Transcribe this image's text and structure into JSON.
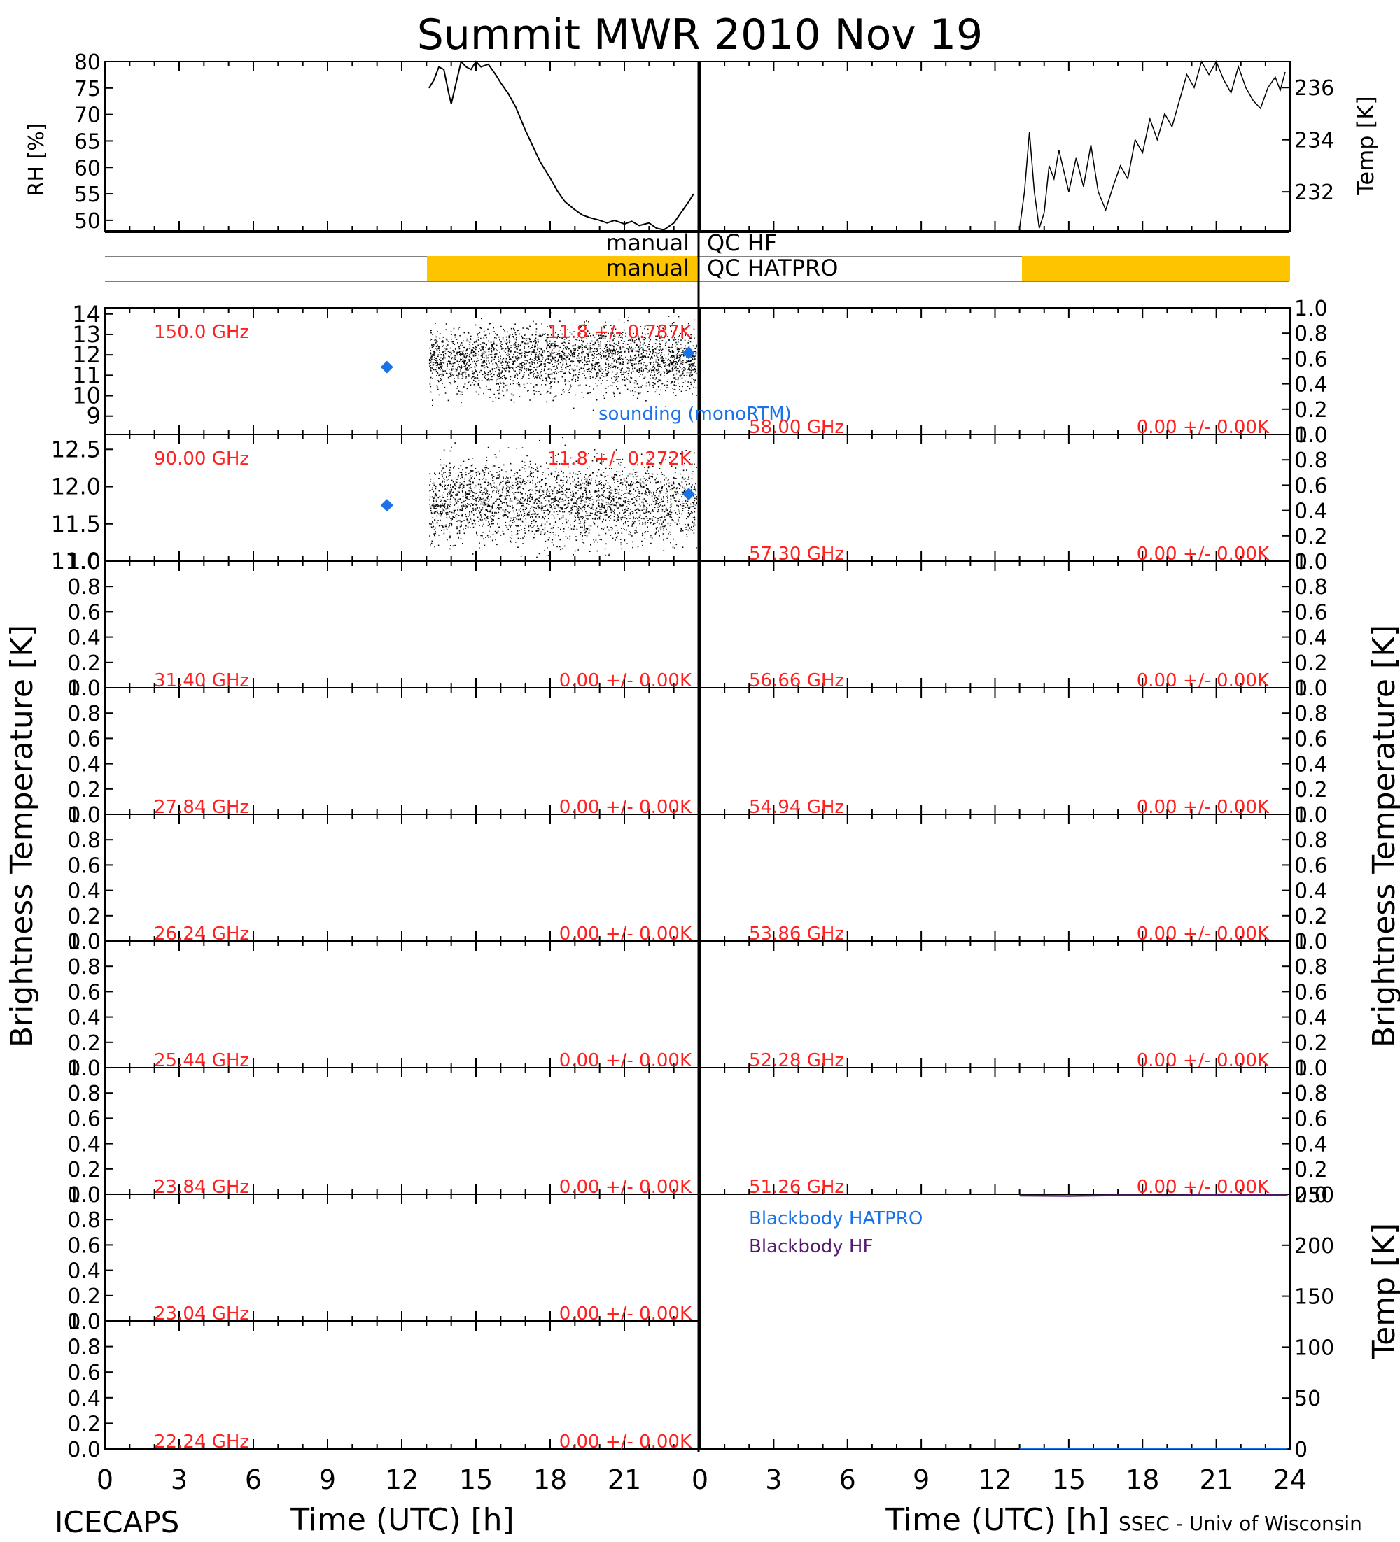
{
  "title": "Summit MWR 2010 Nov 19",
  "footer": {
    "left": "ICECAPS",
    "right": "SSEC - Univ of Wisconsin"
  },
  "x_axis": {
    "label": "Time (UTC) [h]",
    "ticks": [
      "0",
      "3",
      "6",
      "9",
      "12",
      "15",
      "18",
      "21",
      "24"
    ],
    "range": [
      0,
      24
    ]
  },
  "y_labels": {
    "left": "Brightness Temperature [K]",
    "right": "Brightness Temperature [K]",
    "rh": "RH [%]",
    "temp": "Temp [K]",
    "blackbody_temp": "Temp [K]"
  },
  "qc": {
    "hf_left": "manual",
    "hf_right": "QC HF",
    "hatpro_left": "manual",
    "hatpro_right": "QC HATPRO",
    "color": "#ffc400"
  },
  "legend": {
    "sounding": "sounding (monoRTM)",
    "bb_hatpro": "Blackbody HATPRO",
    "bb_hf": "Blackbody HF"
  },
  "colors": {
    "label_red": "#ff2020",
    "sounding_blue": "#1a72e8",
    "bb_purple": "#551a6e",
    "trace": "#000000"
  },
  "chart_data": [
    {
      "type": "line",
      "title": "RH [%]",
      "ylim": [
        48,
        80
      ],
      "yticks": [
        "50",
        "55",
        "60",
        "65",
        "70",
        "75",
        "80"
      ],
      "x": [
        13.1,
        13.3,
        13.5,
        13.7,
        13.9,
        14.0,
        14.2,
        14.4,
        14.6,
        14.8,
        15.0,
        15.2,
        15.5,
        15.8,
        16.0,
        16.3,
        16.6,
        17.0,
        17.3,
        17.6,
        18.0,
        18.3,
        18.6,
        19.0,
        19.3,
        19.6,
        20.0,
        20.3,
        20.6,
        21.0,
        21.3,
        21.6,
        22.0,
        22.3,
        22.6,
        23.0,
        23.3,
        23.6,
        23.8
      ],
      "y": [
        75.0,
        76.5,
        79.0,
        78.5,
        74.0,
        72.0,
        76.0,
        80.0,
        79.0,
        78.5,
        80.0,
        79.0,
        79.5,
        77.5,
        76.0,
        74.0,
        71.5,
        67.0,
        64.0,
        61.0,
        58.0,
        55.5,
        53.5,
        52.0,
        51.0,
        50.5,
        50.0,
        49.5,
        50.0,
        49.3,
        49.8,
        49.0,
        49.5,
        48.5,
        48.2,
        49.5,
        51.5,
        53.5,
        55.0
      ]
    },
    {
      "type": "line",
      "title": "Temp [K]",
      "ylim": [
        230.5,
        237.0
      ],
      "yticks": [
        "232",
        "234",
        "236"
      ],
      "x": [
        13.0,
        13.2,
        13.4,
        13.6,
        13.8,
        14.0,
        14.2,
        14.4,
        14.6,
        14.8,
        15.0,
        15.3,
        15.6,
        15.9,
        16.2,
        16.5,
        16.8,
        17.1,
        17.4,
        17.7,
        18.0,
        18.3,
        18.6,
        18.9,
        19.2,
        19.5,
        19.8,
        20.1,
        20.4,
        20.7,
        21.0,
        21.3,
        21.6,
        21.9,
        22.2,
        22.5,
        22.8,
        23.1,
        23.4,
        23.6,
        23.8
      ],
      "y": [
        230.6,
        232.0,
        234.3,
        232.0,
        230.6,
        231.2,
        233.0,
        232.5,
        233.6,
        232.8,
        232.0,
        233.3,
        232.2,
        233.8,
        232.0,
        231.3,
        232.2,
        233.0,
        232.5,
        234.0,
        233.5,
        234.8,
        234.0,
        235.0,
        234.5,
        235.5,
        236.5,
        236.0,
        237.0,
        236.5,
        237.0,
        236.3,
        235.8,
        236.8,
        236.0,
        235.5,
        235.2,
        236.0,
        236.4,
        235.9,
        236.6
      ]
    },
    {
      "type": "scatter",
      "name": "150.0 GHz",
      "ylim": [
        8.1,
        14.3
      ],
      "yticks": [
        "9",
        "10",
        "11",
        "12",
        "13",
        "14"
      ],
      "mean": 11.8,
      "stats": "11.8 +/- 0.787K",
      "data_start": 13.1,
      "data_end": 23.9,
      "sigma": 0.787,
      "sounding": [
        {
          "x": 11.4,
          "y": 11.4
        },
        {
          "x": 23.6,
          "y": 12.1
        }
      ]
    },
    {
      "type": "scatter",
      "name": "90.00 GHz",
      "ylim": [
        11.0,
        12.7
      ],
      "yticks": [
        "11.0",
        "11.5",
        "12.0",
        "12.5"
      ],
      "mean": 11.8,
      "stats": "11.8 +/- 0.272K",
      "data_start": 13.1,
      "data_end": 23.9,
      "sigma": 0.272,
      "sounding": [
        {
          "x": 11.4,
          "y": 11.75
        },
        {
          "x": 23.6,
          "y": 11.9
        }
      ]
    },
    {
      "type": "line",
      "name": "31.40 GHz",
      "ylim": [
        0,
        1
      ],
      "stats": "0.00 +/- 0.00K"
    },
    {
      "type": "line",
      "name": "27.84 GHz",
      "ylim": [
        0,
        1
      ],
      "stats": "0.00 +/- 0.00K"
    },
    {
      "type": "line",
      "name": "26.24 GHz",
      "ylim": [
        0,
        1
      ],
      "stats": "0.00 +/- 0.00K"
    },
    {
      "type": "line",
      "name": "25.44 GHz",
      "ylim": [
        0,
        1
      ],
      "stats": "0.00 +/- 0.00K"
    },
    {
      "type": "line",
      "name": "23.84 GHz",
      "ylim": [
        0,
        1
      ],
      "stats": "0.00 +/- 0.00K"
    },
    {
      "type": "line",
      "name": "23.04 GHz",
      "ylim": [
        0,
        1
      ],
      "stats": "0.00 +/- 0.00K"
    },
    {
      "type": "line",
      "name": "22.24 GHz",
      "ylim": [
        0,
        1
      ],
      "stats": "0.00 +/- 0.00K"
    },
    {
      "type": "line",
      "name": "58.00 GHz",
      "ylim": [
        0,
        1
      ],
      "stats": "0.00 +/- 0.00K"
    },
    {
      "type": "line",
      "name": "57.30 GHz",
      "ylim": [
        0,
        1
      ],
      "stats": "0.00 +/- 0.00K"
    },
    {
      "type": "line",
      "name": "56.66 GHz",
      "ylim": [
        0,
        1
      ],
      "stats": "0.00 +/- 0.00K"
    },
    {
      "type": "line",
      "name": "54.94 GHz",
      "ylim": [
        0,
        1
      ],
      "stats": "0.00 +/- 0.00K"
    },
    {
      "type": "line",
      "name": "53.86 GHz",
      "ylim": [
        0,
        1
      ],
      "stats": "0.00 +/- 0.00K"
    },
    {
      "type": "line",
      "name": "52.28 GHz",
      "ylim": [
        0,
        1
      ],
      "stats": "0.00 +/- 0.00K"
    },
    {
      "type": "line",
      "name": "51.26 GHz",
      "ylim": [
        0,
        1
      ],
      "stats": "0.00 +/- 0.00K"
    },
    {
      "type": "line",
      "title": "Blackbody Temp [K]",
      "ylim": [
        0,
        250
      ],
      "yticks": [
        "0",
        "50",
        "100",
        "150",
        "200",
        "250"
      ],
      "series": [
        {
          "name": "Blackbody HATPRO",
          "x": [
            13.0,
            23.9
          ],
          "y": [
            0.5,
            0.5
          ]
        },
        {
          "name": "Blackbody HF",
          "x": [
            13.0,
            15.0,
            17.0,
            19.0,
            21.0,
            23.9
          ],
          "y": [
            248.6,
            248.3,
            249.0,
            248.7,
            249.3,
            249.0
          ]
        }
      ]
    }
  ],
  "brightness_yticks": [
    "0.0",
    "0.2",
    "0.4",
    "0.6",
    "0.8",
    "1.0"
  ]
}
